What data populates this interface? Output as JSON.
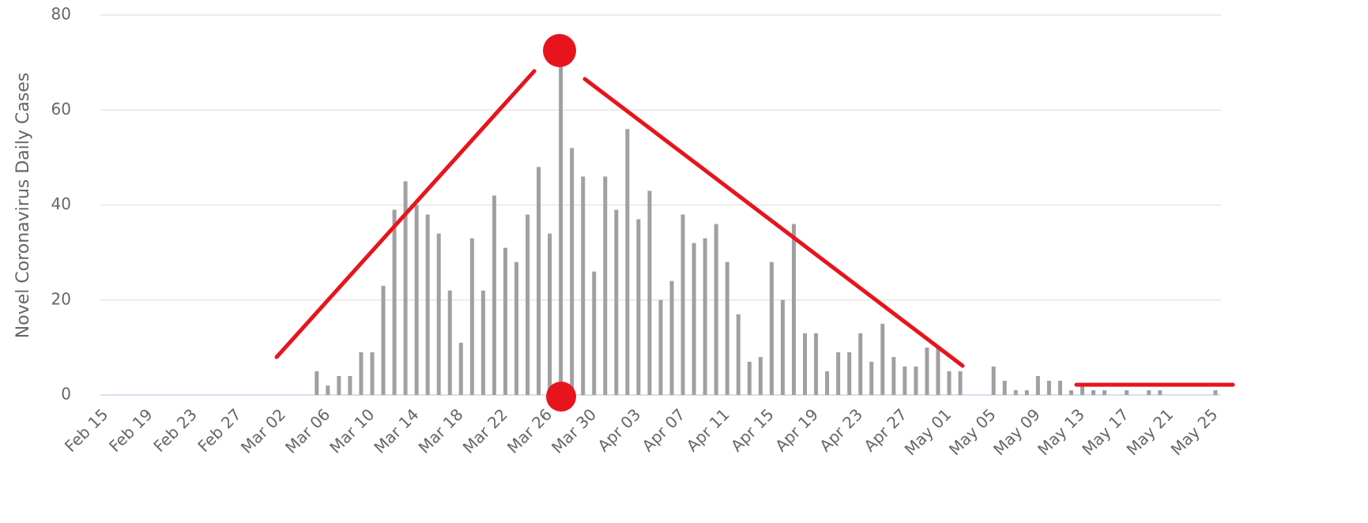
{
  "chart_data": {
    "type": "bar",
    "y_label": "Novel Coronavirus Daily Cases",
    "categories": [
      "Feb 15",
      null,
      null,
      null,
      "Feb 19",
      null,
      null,
      null,
      "Feb 23",
      null,
      null,
      null,
      "Feb 27",
      null,
      null,
      null,
      "Mar 02",
      null,
      null,
      null,
      "Mar 06",
      null,
      null,
      null,
      "Mar 10",
      null,
      null,
      null,
      "Mar 14",
      null,
      null,
      null,
      "Mar 18",
      null,
      null,
      null,
      "Mar 22",
      null,
      null,
      null,
      "Mar 26",
      null,
      null,
      null,
      "Mar 30",
      null,
      null,
      null,
      "Apr 03",
      null,
      null,
      null,
      "Apr 07",
      null,
      null,
      null,
      "Apr 11",
      null,
      null,
      null,
      "Apr 15",
      null,
      null,
      null,
      "Apr 19",
      null,
      null,
      null,
      "Apr 23",
      null,
      null,
      null,
      "Apr 27",
      null,
      null,
      null,
      "May 01",
      null,
      null,
      null,
      "May 05",
      null,
      null,
      null,
      "May 09",
      null,
      null,
      null,
      "May 13",
      null,
      null,
      null,
      "May 17",
      null,
      null,
      null,
      "May 21",
      null,
      null,
      null,
      "May 25"
    ],
    "values": [
      0,
      0,
      0,
      0,
      0,
      0,
      0,
      0,
      0,
      0,
      0,
      0,
      0,
      0,
      0,
      0,
      0,
      0,
      0,
      5,
      2,
      4,
      4,
      9,
      9,
      23,
      39,
      45,
      40,
      38,
      34,
      22,
      11,
      33,
      22,
      42,
      31,
      28,
      38,
      48,
      34,
      71,
      52,
      46,
      26,
      46,
      39,
      56,
      37,
      43,
      20,
      24,
      38,
      32,
      33,
      36,
      28,
      17,
      7,
      8,
      28,
      20,
      36,
      13,
      13,
      5,
      9,
      9,
      13,
      7,
      15,
      8,
      6,
      6,
      10,
      10,
      5,
      5,
      0,
      0,
      6,
      3,
      1,
      1,
      4,
      3,
      3,
      1,
      2,
      1,
      1,
      0,
      1,
      0,
      1,
      1,
      0,
      0,
      0,
      0,
      1
    ],
    "color": "#a0a0a0",
    "ylim": [
      0,
      80
    ],
    "yticks": [
      0,
      20,
      40,
      60,
      80
    ],
    "grid": true
  }
}
